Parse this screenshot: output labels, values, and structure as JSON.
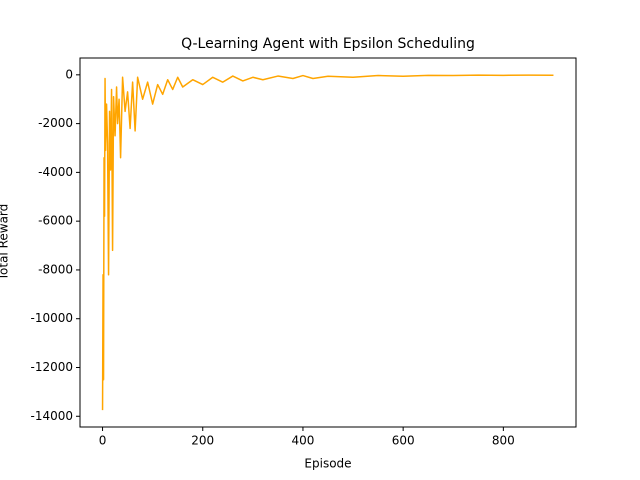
{
  "chart_data": {
    "type": "line",
    "title": "Q-Learning Agent with Epsilon Scheduling",
    "x_label": "Episode",
    "y_label": "Total Reward",
    "x": [
      0,
      1,
      2,
      3,
      4,
      5,
      6,
      8,
      10,
      12,
      14,
      16,
      18,
      20,
      22,
      25,
      28,
      30,
      33,
      36,
      40,
      45,
      50,
      55,
      60,
      65,
      70,
      80,
      90,
      100,
      110,
      120,
      130,
      140,
      150,
      160,
      180,
      200,
      220,
      240,
      260,
      280,
      300,
      320,
      350,
      380,
      400,
      420,
      450,
      500,
      550,
      600,
      650,
      700,
      750,
      800,
      850,
      900
    ],
    "series": [
      {
        "name": "Total Reward",
        "color": "#ffa500",
        "values": [
          -13750,
          -8200,
          -12500,
          -3400,
          -5800,
          -150,
          -3100,
          -1200,
          -2800,
          -8200,
          -1500,
          -3900,
          -600,
          -7200,
          -900,
          -2500,
          -500,
          -2000,
          -1000,
          -3400,
          -100,
          -1500,
          -700,
          -2200,
          -300,
          -2300,
          -100,
          -1000,
          -300,
          -1200,
          -400,
          -800,
          -200,
          -600,
          -100,
          -500,
          -200,
          -400,
          -100,
          -300,
          -50,
          -250,
          -100,
          -200,
          -50,
          -150,
          -30,
          -150,
          -60,
          -100,
          -30,
          -60,
          -20,
          -30,
          -10,
          -20,
          -10,
          -15
        ]
      }
    ],
    "xlim": [
      -45,
      945
    ],
    "xticks": [
      0,
      200,
      400,
      600,
      800
    ],
    "ylim": [
      -14440,
      690
    ],
    "yticks": [
      -14000,
      -12000,
      -10000,
      -8000,
      -6000,
      -4000,
      -2000,
      0
    ]
  }
}
